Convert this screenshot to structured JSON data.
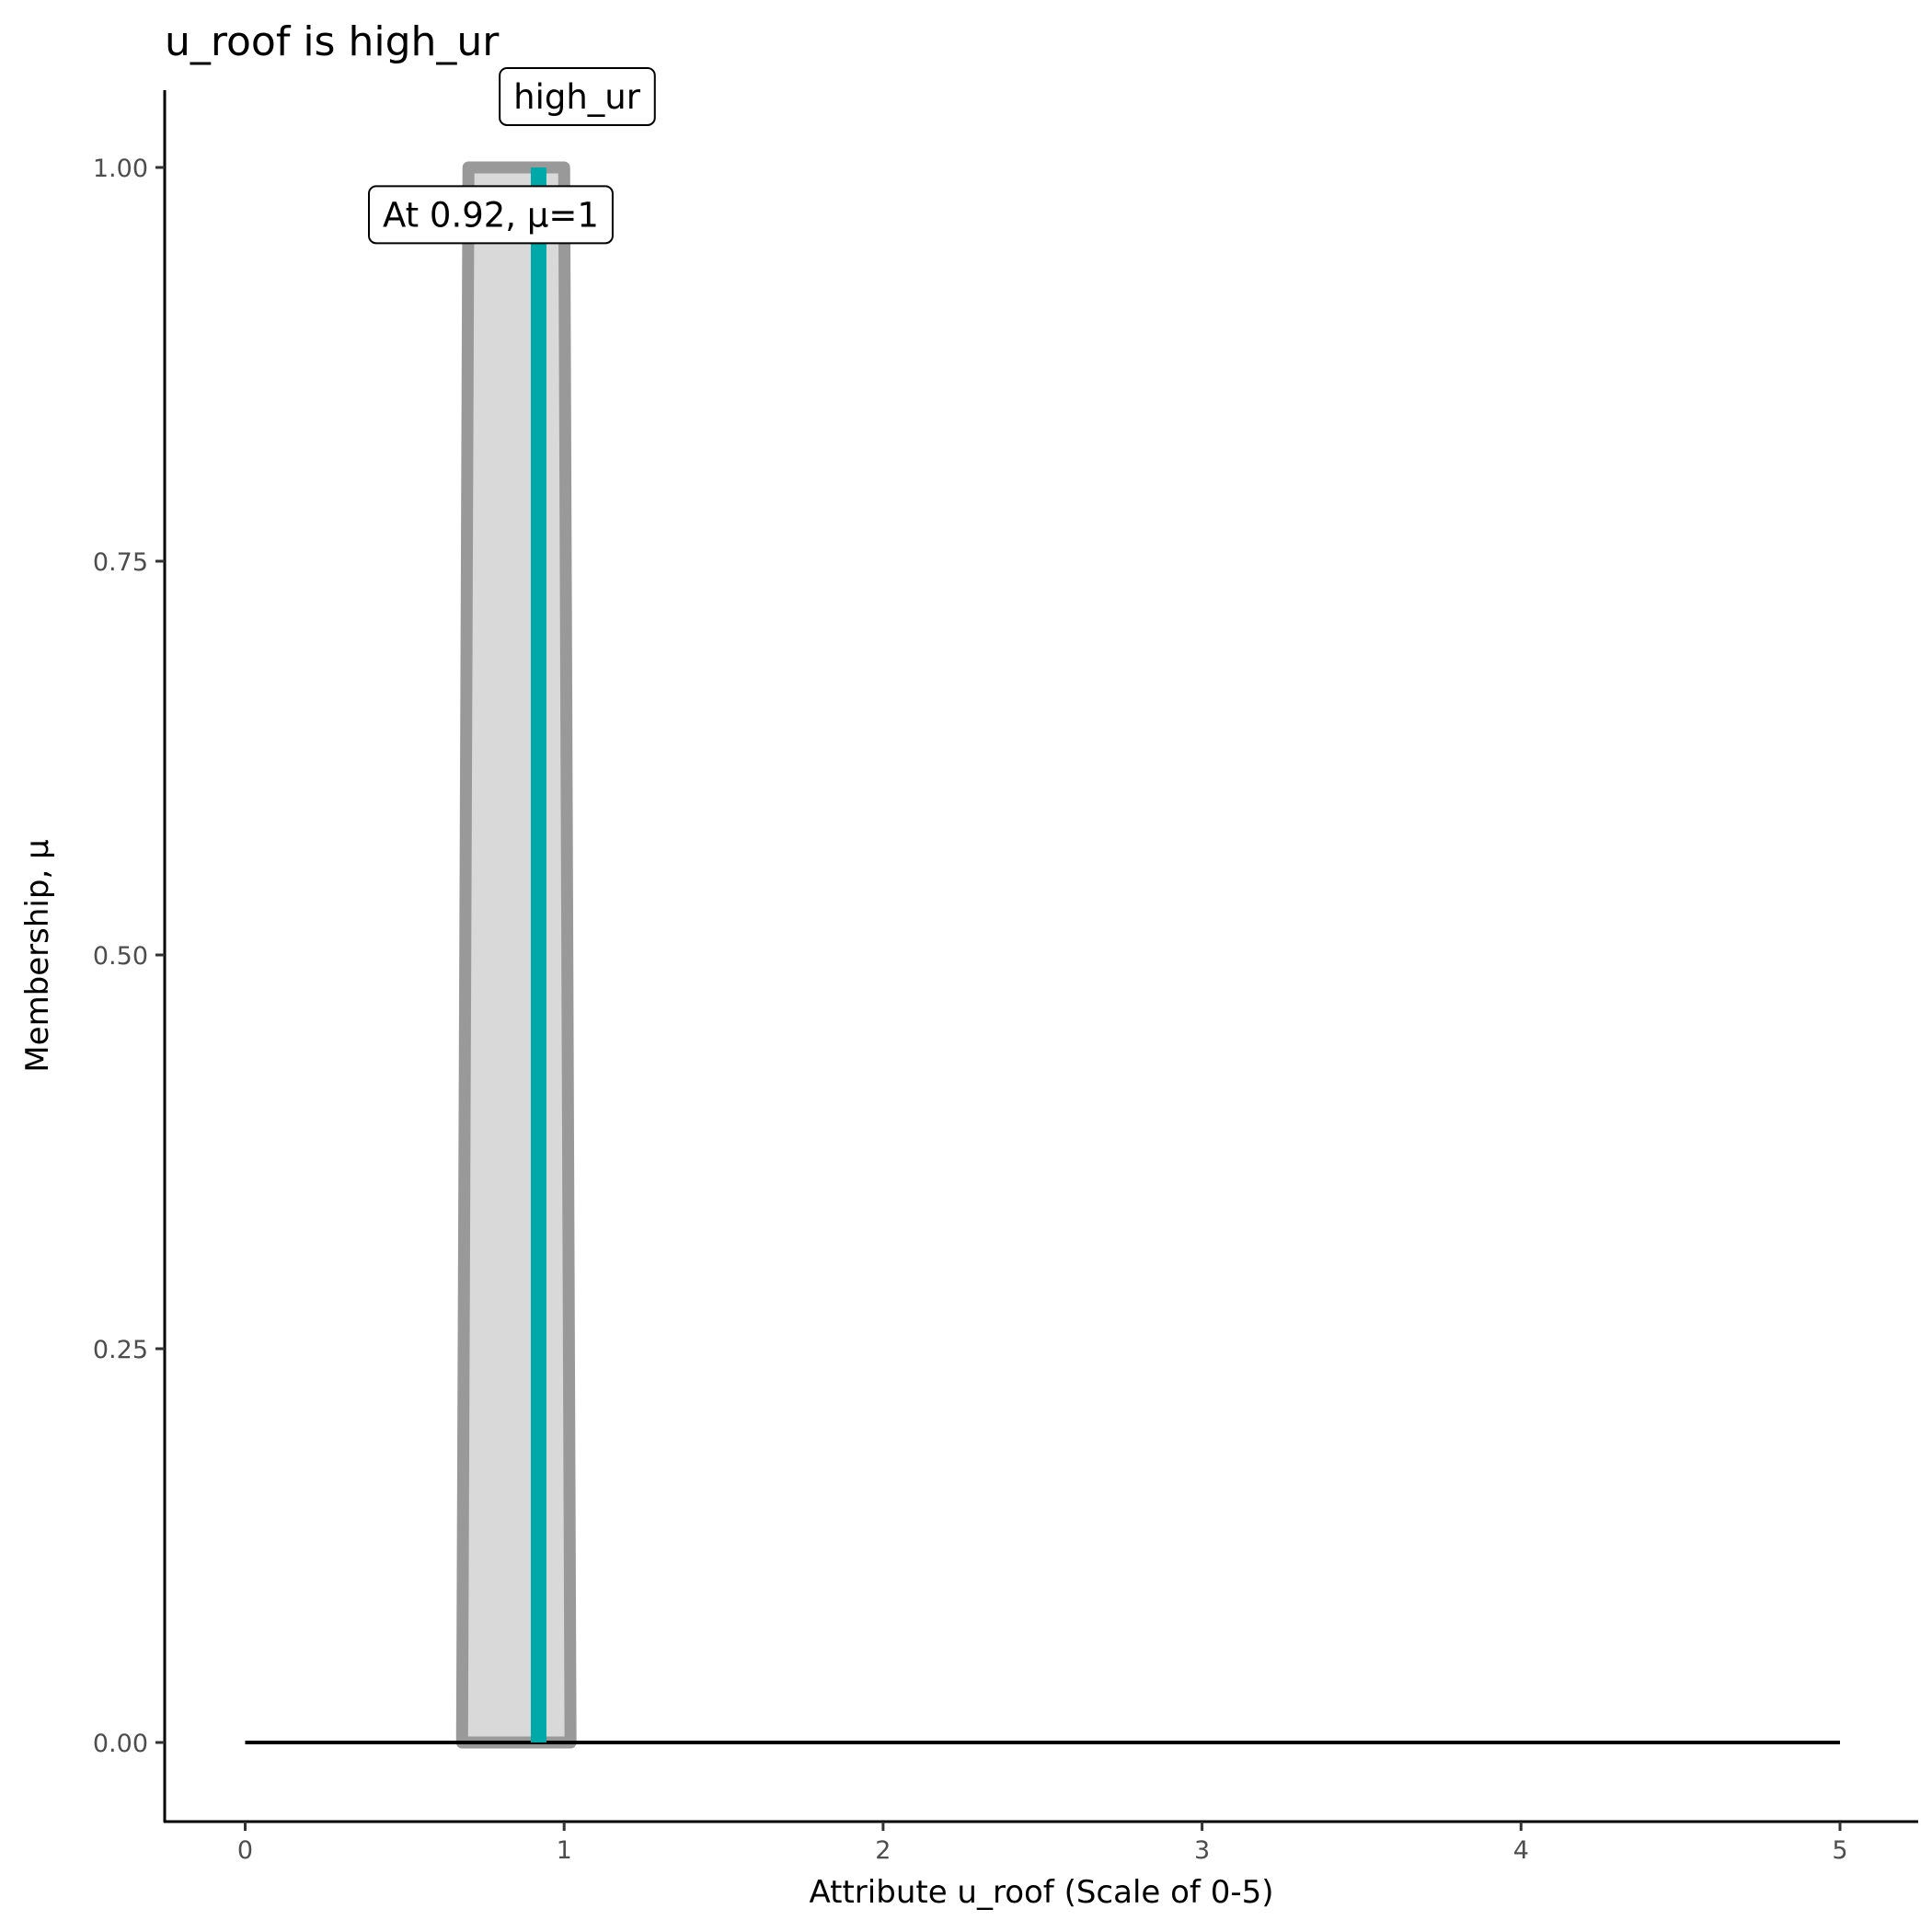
{
  "chart_data": {
    "type": "line",
    "title": "u_roof is high_ur",
    "xlabel": "Attribute u_roof (Scale of 0-5)",
    "ylabel": "Membership, μ",
    "xlim": [
      -0.25,
      5.25
    ],
    "ylim": [
      -0.05,
      1.05
    ],
    "x_ticks": [
      "0",
      "1",
      "2",
      "3",
      "4",
      "5"
    ],
    "y_ticks": [
      "0.00",
      "0.25",
      "0.50",
      "0.75",
      "1.00"
    ],
    "grid": false,
    "membership_function": {
      "name": "high_ur",
      "points": [
        [
          0.68,
          0
        ],
        [
          0.7,
          1
        ],
        [
          1.0,
          1
        ],
        [
          1.02,
          0
        ]
      ],
      "fill_color": "#d9d9d9",
      "line_color": "#999999"
    },
    "baseline": {
      "x": [
        0,
        5
      ],
      "y": 0,
      "color": "#000000"
    },
    "input_marker": {
      "x": 0.92,
      "mu": 1,
      "color": "#00a9a9"
    },
    "annotations": {
      "set_label": "high_ur",
      "value_label": "At 0.92, μ=1"
    }
  }
}
